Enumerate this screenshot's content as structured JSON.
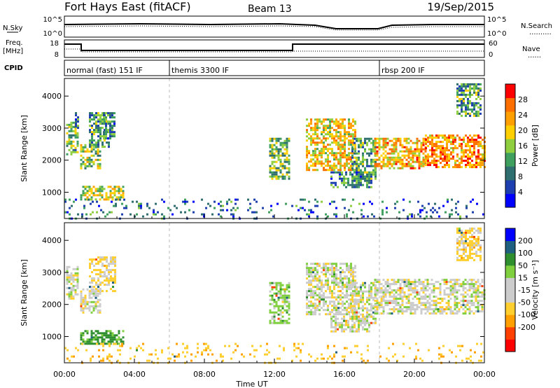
{
  "header": {
    "station": "Fort Hays East (fitACF)",
    "beam": "Beam 13",
    "date": "19/Sep/2015"
  },
  "nsky_panel": {
    "left_label": "N.Sky",
    "right_label": "N.Search",
    "right_legend": "..........",
    "left_ticks": [
      "10^5",
      "10^0"
    ],
    "right_ticks": [
      "10^5",
      "10^0"
    ]
  },
  "freq_panel": {
    "left_label_1": "Freq.",
    "left_label_2": "[MHz]",
    "right_label": "Nave",
    "right_legend": "......",
    "left_ticks": [
      "18",
      "8"
    ],
    "right_ticks": [
      "60",
      "0"
    ]
  },
  "cpid": {
    "label": "CPID",
    "modes": [
      {
        "name": "normal (fast) 151 IF",
        "start_h": 0,
        "end_h": 6
      },
      {
        "name": "themis 3300 IF",
        "start_h": 6,
        "end_h": 18
      },
      {
        "name": "rbsp 200 IF",
        "start_h": 18,
        "end_h": 24
      }
    ]
  },
  "colors": {
    "power_scale": [
      "#0000ff",
      "#1e3fb0",
      "#2f6f6f",
      "#3f9f5f",
      "#8fcf3f",
      "#ffcf00",
      "#ff9f00",
      "#ff6f00",
      "#ff0000"
    ],
    "velocity_scale": [
      "#ff0000",
      "#ff4000",
      "#ff9f00",
      "#ffcf30",
      "#cccccc",
      "#cccccc",
      "#7fcf3f",
      "#2f8f2f",
      "#1f5f7f",
      "#0000ff"
    ]
  },
  "chart_data": [
    {
      "type": "heatmap",
      "name": "power",
      "ylabel": "Slant Range [km]",
      "xlabel": "Time UT",
      "xlim": [
        0,
        24
      ],
      "ylim": [
        180,
        4550
      ],
      "x_ticks": [
        "00:00",
        "04:00",
        "08:00",
        "12:00",
        "16:00",
        "20:00",
        "00:00"
      ],
      "y_ticks": [
        1000,
        2000,
        3000,
        4000
      ],
      "colorbar": {
        "label": "Power [dB]",
        "ticks": [
          4,
          8,
          12,
          16,
          20,
          24,
          28
        ],
        "range": [
          0,
          32
        ]
      },
      "regions": [
        {
          "t0": 0.1,
          "t1": 0.8,
          "r0": 2200,
          "r1": 3200,
          "value": 14
        },
        {
          "t0": 0.6,
          "t1": 0.75,
          "r0": 3000,
          "r1": 3500,
          "value": 10
        },
        {
          "t0": 0.9,
          "t1": 2.1,
          "r0": 1750,
          "r1": 2500,
          "value": 16
        },
        {
          "t0": 1.4,
          "t1": 2.6,
          "r0": 2400,
          "r1": 3500,
          "value": 12
        },
        {
          "t0": 2.2,
          "t1": 2.9,
          "r0": 2700,
          "r1": 3500,
          "value": 10
        },
        {
          "t0": 0.9,
          "t1": 3.4,
          "r0": 750,
          "r1": 1200,
          "value": 18
        },
        {
          "t0": 11.7,
          "t1": 12.8,
          "r0": 1400,
          "r1": 2700,
          "value": 14
        },
        {
          "t0": 13.8,
          "t1": 16.6,
          "r0": 1700,
          "r1": 3300,
          "value": 20
        },
        {
          "t0": 16.4,
          "t1": 17.8,
          "r0": 1400,
          "r1": 2700,
          "value": 12
        },
        {
          "t0": 15.2,
          "t1": 17.6,
          "r0": 1150,
          "r1": 1650,
          "value": 10
        },
        {
          "t0": 17.7,
          "t1": 20.7,
          "r0": 1750,
          "r1": 2700,
          "value": 22
        },
        {
          "t0": 20.6,
          "t1": 24.0,
          "r0": 1800,
          "r1": 2800,
          "value": 24
        },
        {
          "t0": 22.4,
          "t1": 23.8,
          "r0": 3400,
          "r1": 4400,
          "value": 12
        },
        {
          "t0": 0.0,
          "t1": 24.0,
          "r0": 200,
          "r1": 800,
          "value": 8,
          "sparse": true
        }
      ]
    },
    {
      "type": "heatmap",
      "name": "velocity",
      "ylabel": "Slant Range [km]",
      "xlabel": "Time UT",
      "xlim": [
        0,
        24
      ],
      "ylim": [
        180,
        4550
      ],
      "x_ticks": [
        "00:00",
        "04:00",
        "08:00",
        "12:00",
        "16:00",
        "20:00",
        "00:00"
      ],
      "y_ticks": [
        1000,
        2000,
        3000,
        4000
      ],
      "colorbar": {
        "label": "Velocity [m s⁻¹]",
        "ticks": [
          200,
          100,
          50,
          15,
          -15,
          -50,
          -100,
          -200
        ]
      },
      "regions": [
        {
          "t0": 0.1,
          "t1": 0.8,
          "r0": 2200,
          "r1": 3200,
          "value": 0
        },
        {
          "t0": 0.9,
          "t1": 2.1,
          "r0": 1750,
          "r1": 2500,
          "value": 0
        },
        {
          "t0": 1.4,
          "t1": 2.9,
          "r0": 2400,
          "r1": 3500,
          "value": -20
        },
        {
          "t0": 0.9,
          "t1": 3.4,
          "r0": 750,
          "r1": 1200,
          "value": 60
        },
        {
          "t0": 11.7,
          "t1": 12.8,
          "r0": 1400,
          "r1": 2700,
          "value": 30
        },
        {
          "t0": 13.8,
          "t1": 16.6,
          "r0": 1700,
          "r1": 3300,
          "value": 0
        },
        {
          "t0": 16.4,
          "t1": 17.8,
          "r0": 1400,
          "r1": 2700,
          "value": 0
        },
        {
          "t0": 15.2,
          "t1": 17.6,
          "r0": 1150,
          "r1": 1650,
          "value": 0
        },
        {
          "t0": 17.7,
          "t1": 24.0,
          "r0": 1750,
          "r1": 2800,
          "value": 0
        },
        {
          "t0": 22.4,
          "t1": 23.8,
          "r0": 3400,
          "r1": 4400,
          "value": -30
        },
        {
          "t0": 0.0,
          "t1": 24.0,
          "r0": 200,
          "r1": 800,
          "value": -40,
          "sparse": true
        }
      ]
    }
  ]
}
